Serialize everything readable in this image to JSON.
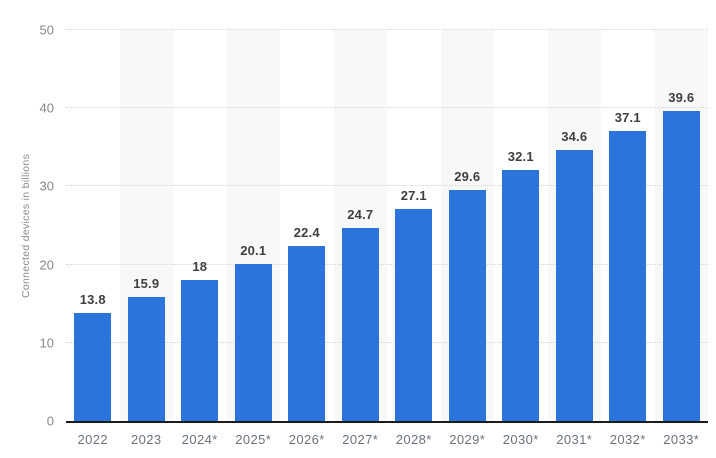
{
  "chart_data": {
    "type": "bar",
    "title": "",
    "xlabel": "",
    "ylabel": "Connected devices in billions",
    "categories": [
      "2022",
      "2023",
      "2024*",
      "2025*",
      "2026*",
      "2027*",
      "2028*",
      "2029*",
      "2030*",
      "2031*",
      "2032*",
      "2033*"
    ],
    "values": [
      13.8,
      15.9,
      18,
      20.1,
      22.4,
      24.7,
      27.1,
      29.6,
      32.1,
      34.6,
      37.1,
      39.6
    ],
    "value_labels": [
      "13.8",
      "15.9",
      "18",
      "20.1",
      "22.4",
      "24.7",
      "27.1",
      "29.6",
      "32.1",
      "34.6",
      "37.1",
      "39.6"
    ],
    "ylim": [
      0,
      50
    ],
    "yticks": [
      0,
      10,
      20,
      30,
      40,
      50
    ],
    "grid": "horizontal-dotted",
    "legend": "none",
    "band_pattern": "alternate-columns-starting-second",
    "colors": {
      "bar": "#2b74d9",
      "column_band": "#f8f8f9",
      "gridline": "#d4d4d4",
      "axis_line": "#1c1c1c",
      "value_label": "#3f3f3f",
      "x_tick_label": "#6a737d",
      "y_tick_label": "#8c8681",
      "y_title": "#8a8a8a",
      "background": "#ffffff"
    }
  }
}
